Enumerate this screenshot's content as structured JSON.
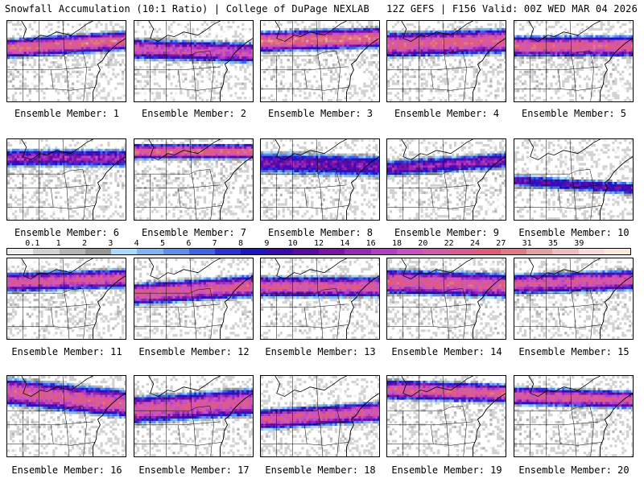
{
  "header": {
    "left": "Snowfall Accumulation (10:1 Ratio) | College of DuPage NEXLAB",
    "right": "12Z GEFS | F156 Valid: 00Z WED MAR 04 2026"
  },
  "legend": {
    "ticks": [
      "0.1",
      "1",
      "2",
      "3",
      "4",
      "5",
      "6",
      "7",
      "8",
      "9",
      "10",
      "12",
      "14",
      "16",
      "18",
      "20",
      "22",
      "24",
      "27",
      "31",
      "35",
      "39"
    ],
    "colors": [
      "#f0f0f0",
      "#d2d2d2",
      "#b4b4b4",
      "#969696",
      "#a8dcff",
      "#7fb4f5",
      "#5a8ff0",
      "#3c64eb",
      "#2832d7",
      "#1e14c8",
      "#3c0ab4",
      "#5a0aa5",
      "#7814aa",
      "#9628b9",
      "#b43cc8",
      "#c850c3",
      "#d25aaa",
      "#dc5a91",
      "#e15a78",
      "#e17882",
      "#e6a0a0",
      "#f0bebe",
      "#f8dcdc",
      "#fbebd7"
    ]
  },
  "members": [
    {
      "label": "Ensemble Member: 1",
      "snow": {
        "band_center": 0.28,
        "band_width": 0.28,
        "peak": 0.92,
        "tilt": 0.1
      }
    },
    {
      "label": "Ensemble Member: 2",
      "snow": {
        "band_center": 0.36,
        "band_width": 0.3,
        "peak": 0.8,
        "tilt": -0.05
      }
    },
    {
      "label": "Ensemble Member: 3",
      "snow": {
        "band_center": 0.22,
        "band_width": 0.3,
        "peak": 0.95,
        "tilt": 0.05
      }
    },
    {
      "label": "Ensemble Member: 4",
      "snow": {
        "band_center": 0.26,
        "band_width": 0.36,
        "peak": 0.9,
        "tilt": 0.05
      }
    },
    {
      "label": "Ensemble Member: 5",
      "snow": {
        "band_center": 0.3,
        "band_width": 0.3,
        "peak": 0.9,
        "tilt": 0.0
      }
    },
    {
      "label": "Ensemble Member: 6",
      "snow": {
        "band_center": 0.22,
        "band_width": 0.26,
        "peak": 0.68,
        "tilt": 0.0
      }
    },
    {
      "label": "Ensemble Member: 7",
      "snow": {
        "band_center": 0.14,
        "band_width": 0.22,
        "peak": 0.92,
        "tilt": 0.0
      }
    },
    {
      "label": "Ensemble Member: 8",
      "snow": {
        "band_center": 0.3,
        "band_width": 0.32,
        "peak": 0.62,
        "tilt": -0.05
      }
    },
    {
      "label": "Ensemble Member: 9",
      "snow": {
        "band_center": 0.3,
        "band_width": 0.24,
        "peak": 0.66,
        "tilt": 0.1
      }
    },
    {
      "label": "Ensemble Member: 10",
      "snow": {
        "band_center": 0.55,
        "band_width": 0.18,
        "peak": 0.58,
        "tilt": -0.1
      }
    },
    {
      "label": "Ensemble Member: 11",
      "snow": {
        "band_center": 0.26,
        "band_width": 0.28,
        "peak": 0.85,
        "tilt": 0.05
      }
    },
    {
      "label": "Ensemble Member: 12",
      "snow": {
        "band_center": 0.38,
        "band_width": 0.32,
        "peak": 0.88,
        "tilt": 0.1
      }
    },
    {
      "label": "Ensemble Member: 13",
      "snow": {
        "band_center": 0.34,
        "band_width": 0.3,
        "peak": 0.86,
        "tilt": 0.0
      }
    },
    {
      "label": "Ensemble Member: 14",
      "snow": {
        "band_center": 0.3,
        "band_width": 0.36,
        "peak": 0.88,
        "tilt": -0.05
      }
    },
    {
      "label": "Ensemble Member: 15",
      "snow": {
        "band_center": 0.28,
        "band_width": 0.3,
        "peak": 0.84,
        "tilt": 0.05
      }
    },
    {
      "label": "Ensemble Member: 16",
      "snow": {
        "band_center": 0.26,
        "band_width": 0.4,
        "peak": 0.88,
        "tilt": -0.15
      }
    },
    {
      "label": "Ensemble Member: 17",
      "snow": {
        "band_center": 0.36,
        "band_width": 0.4,
        "peak": 0.86,
        "tilt": 0.1
      }
    },
    {
      "label": "Ensemble Member: 18",
      "snow": {
        "band_center": 0.48,
        "band_width": 0.3,
        "peak": 0.85,
        "tilt": 0.1
      }
    },
    {
      "label": "Ensemble Member: 19",
      "snow": {
        "band_center": 0.18,
        "band_width": 0.28,
        "peak": 0.88,
        "tilt": -0.05
      }
    },
    {
      "label": "Ensemble Member: 20",
      "snow": {
        "band_center": 0.26,
        "band_width": 0.26,
        "peak": 0.86,
        "tilt": -0.05
      }
    }
  ]
}
